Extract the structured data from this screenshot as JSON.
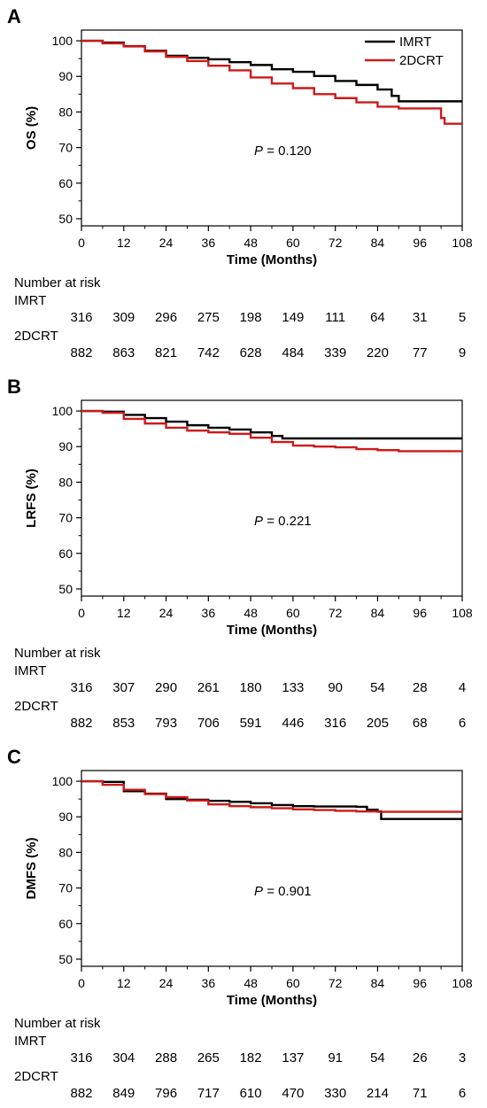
{
  "chart_data": [
    {
      "type": "line",
      "panel_label": "A",
      "ylabel": "OS (%)",
      "xlabel": "Time (Months)",
      "xlim": [
        0,
        108
      ],
      "ylim": [
        48,
        103
      ],
      "x_ticks": [
        0,
        12,
        24,
        36,
        48,
        60,
        72,
        84,
        96,
        108
      ],
      "y_ticks": [
        50,
        60,
        70,
        80,
        90,
        100
      ],
      "p_prefix": "P",
      "p_value": "= 0.120",
      "legend_position": "top-right",
      "series": [
        {
          "name": "IMRT",
          "color": "#000000",
          "points": [
            [
              0,
              100
            ],
            [
              6,
              99.5
            ],
            [
              12,
              98.5
            ],
            [
              18,
              97.2
            ],
            [
              24,
              95.8
            ],
            [
              30,
              95.2
            ],
            [
              36,
              94.8
            ],
            [
              42,
              94.0
            ],
            [
              48,
              93.2
            ],
            [
              54,
              92.0
            ],
            [
              60,
              91.3
            ],
            [
              66,
              90.1
            ],
            [
              72,
              88.7
            ],
            [
              78,
              87.6
            ],
            [
              84,
              86.3
            ],
            [
              88,
              84.5
            ],
            [
              90,
              83.0
            ],
            [
              96,
              83.0
            ],
            [
              108,
              83.0
            ]
          ]
        },
        {
          "name": "2DCRT",
          "color": "#cc1a1a",
          "points": [
            [
              0,
              100
            ],
            [
              6,
              99.3
            ],
            [
              12,
              98.4
            ],
            [
              18,
              97.0
            ],
            [
              24,
              95.5
            ],
            [
              30,
              94.3
            ],
            [
              36,
              93.0
            ],
            [
              42,
              91.7
            ],
            [
              48,
              89.7
            ],
            [
              54,
              88.0
            ],
            [
              60,
              86.7
            ],
            [
              66,
              85.0
            ],
            [
              72,
              83.9
            ],
            [
              78,
              82.7
            ],
            [
              84,
              81.5
            ],
            [
              90,
              81.0
            ],
            [
              96,
              81.0
            ],
            [
              102,
              78.3
            ],
            [
              103,
              76.7
            ],
            [
              108,
              76.7
            ]
          ]
        }
      ],
      "risk": {
        "title": "Number at risk",
        "groups": [
          {
            "name": "IMRT",
            "values": [
              316,
              309,
              296,
              275,
              198,
              149,
              111,
              64,
              31,
              5
            ]
          },
          {
            "name": "2DCRT",
            "values": [
              882,
              863,
              821,
              742,
              628,
              484,
              339,
              220,
              77,
              9
            ]
          }
        ]
      }
    },
    {
      "type": "line",
      "panel_label": "B",
      "ylabel": "LRFS (%)",
      "xlabel": "Time (Months)",
      "xlim": [
        0,
        108
      ],
      "ylim": [
        48,
        103
      ],
      "x_ticks": [
        0,
        12,
        24,
        36,
        48,
        60,
        72,
        84,
        96,
        108
      ],
      "y_ticks": [
        50,
        60,
        70,
        80,
        90,
        100
      ],
      "p_prefix": "P",
      "p_value": "= 0.221",
      "series": [
        {
          "name": "IMRT",
          "color": "#000000",
          "points": [
            [
              0,
              100
            ],
            [
              6,
              99.8
            ],
            [
              12,
              98.9
            ],
            [
              18,
              98.0
            ],
            [
              24,
              97.0
            ],
            [
              30,
              96.0
            ],
            [
              36,
              95.3
            ],
            [
              42,
              94.8
            ],
            [
              48,
              94.0
            ],
            [
              54,
              93.0
            ],
            [
              57,
              92.3
            ],
            [
              60,
              92.3
            ],
            [
              72,
              92.3
            ],
            [
              84,
              92.3
            ],
            [
              96,
              92.3
            ],
            [
              108,
              92.3
            ]
          ]
        },
        {
          "name": "2DCRT",
          "color": "#cc1a1a",
          "points": [
            [
              0,
              100
            ],
            [
              6,
              99.5
            ],
            [
              12,
              97.8
            ],
            [
              18,
              96.5
            ],
            [
              24,
              95.3
            ],
            [
              30,
              94.5
            ],
            [
              36,
              94.0
            ],
            [
              42,
              93.6
            ],
            [
              48,
              92.5
            ],
            [
              54,
              91.3
            ],
            [
              60,
              90.3
            ],
            [
              66,
              90.0
            ],
            [
              72,
              89.8
            ],
            [
              78,
              89.3
            ],
            [
              84,
              89.0
            ],
            [
              90,
              88.7
            ],
            [
              96,
              88.7
            ],
            [
              108,
              88.7
            ]
          ]
        }
      ],
      "risk": {
        "title": "Number at risk",
        "groups": [
          {
            "name": "IMRT",
            "values": [
              316,
              307,
              290,
              261,
              180,
              133,
              90,
              54,
              28,
              4
            ]
          },
          {
            "name": "2DCRT",
            "values": [
              882,
              853,
              793,
              706,
              591,
              446,
              316,
              205,
              68,
              6
            ]
          }
        ]
      }
    },
    {
      "type": "line",
      "panel_label": "C",
      "ylabel": "DMFS (%)",
      "xlabel": "Time (Months)",
      "xlim": [
        0,
        108
      ],
      "ylim": [
        48,
        103
      ],
      "x_ticks": [
        0,
        12,
        24,
        36,
        48,
        60,
        72,
        84,
        96,
        108
      ],
      "y_ticks": [
        50,
        60,
        70,
        80,
        90,
        100
      ],
      "p_prefix": "P",
      "p_value": "= 0.901",
      "series": [
        {
          "name": "IMRT",
          "color": "#000000",
          "points": [
            [
              0,
              100
            ],
            [
              6,
              99.8
            ],
            [
              12,
              97.2
            ],
            [
              18,
              96.5
            ],
            [
              24,
              95.0
            ],
            [
              30,
              94.8
            ],
            [
              36,
              94.5
            ],
            [
              42,
              94.2
            ],
            [
              48,
              93.8
            ],
            [
              54,
              93.3
            ],
            [
              60,
              93.0
            ],
            [
              66,
              92.9
            ],
            [
              72,
              92.9
            ],
            [
              78,
              92.8
            ],
            [
              81,
              92.0
            ],
            [
              84,
              91.5
            ],
            [
              85,
              89.4
            ],
            [
              96,
              89.4
            ],
            [
              108,
              89.4
            ]
          ]
        },
        {
          "name": "2DCRT",
          "color": "#cc1a1a",
          "points": [
            [
              0,
              100
            ],
            [
              6,
              99.0
            ],
            [
              12,
              97.6
            ],
            [
              18,
              96.4
            ],
            [
              24,
              95.5
            ],
            [
              30,
              94.6
            ],
            [
              36,
              93.5
            ],
            [
              42,
              93.0
            ],
            [
              48,
              92.7
            ],
            [
              54,
              92.4
            ],
            [
              60,
              92.1
            ],
            [
              66,
              91.9
            ],
            [
              72,
              91.7
            ],
            [
              78,
              91.5
            ],
            [
              84,
              91.4
            ],
            [
              96,
              91.4
            ],
            [
              108,
              91.4
            ]
          ]
        }
      ],
      "risk": {
        "title": "Number at risk",
        "groups": [
          {
            "name": "IMRT",
            "values": [
              316,
              304,
              288,
              265,
              182,
              137,
              91,
              54,
              26,
              3
            ]
          },
          {
            "name": "2DCRT",
            "values": [
              882,
              849,
              796,
              717,
              610,
              470,
              330,
              214,
              71,
              6
            ]
          }
        ]
      }
    }
  ]
}
